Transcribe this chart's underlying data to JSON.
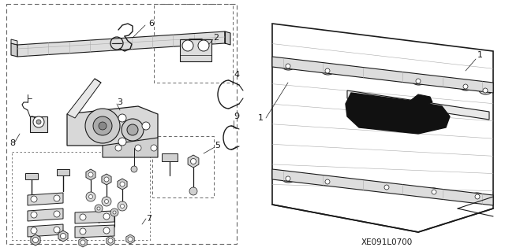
{
  "background_color": "#ffffff",
  "fig_width": 6.4,
  "fig_height": 3.19,
  "dpi": 100,
  "diagram_code": "XE091L0700",
  "dark": "#1a1a1a",
  "gray": "#666666",
  "lgray": "#aaaaaa",
  "llgray": "#dddddd"
}
